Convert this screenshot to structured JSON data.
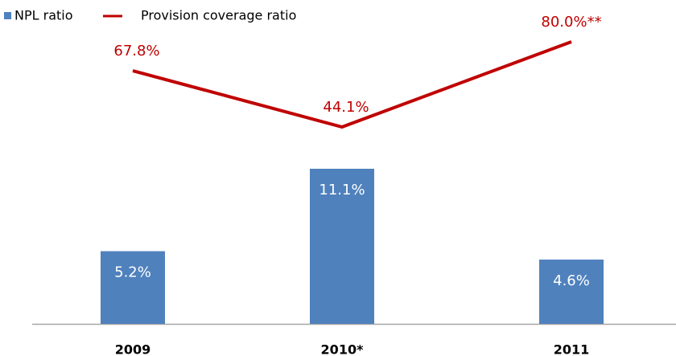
{
  "chart_data": {
    "type": "bar-line",
    "categories": [
      "2009",
      "2010*",
      "2011"
    ],
    "series": [
      {
        "name": "NPL ratio",
        "type": "bar",
        "color": "#4f81bd",
        "values": [
          5.2,
          11.1,
          4.6
        ],
        "value_labels": [
          "5.2%",
          "11.1%",
          "4.6%"
        ]
      },
      {
        "name": "Provision coverage ratio",
        "type": "line",
        "axis": "y2",
        "color": "#c00000",
        "values": [
          67.8,
          44.1,
          80.0
        ],
        "value_labels": [
          "67.8%",
          "44.1%",
          "80.0%**"
        ]
      }
    ]
  }
}
